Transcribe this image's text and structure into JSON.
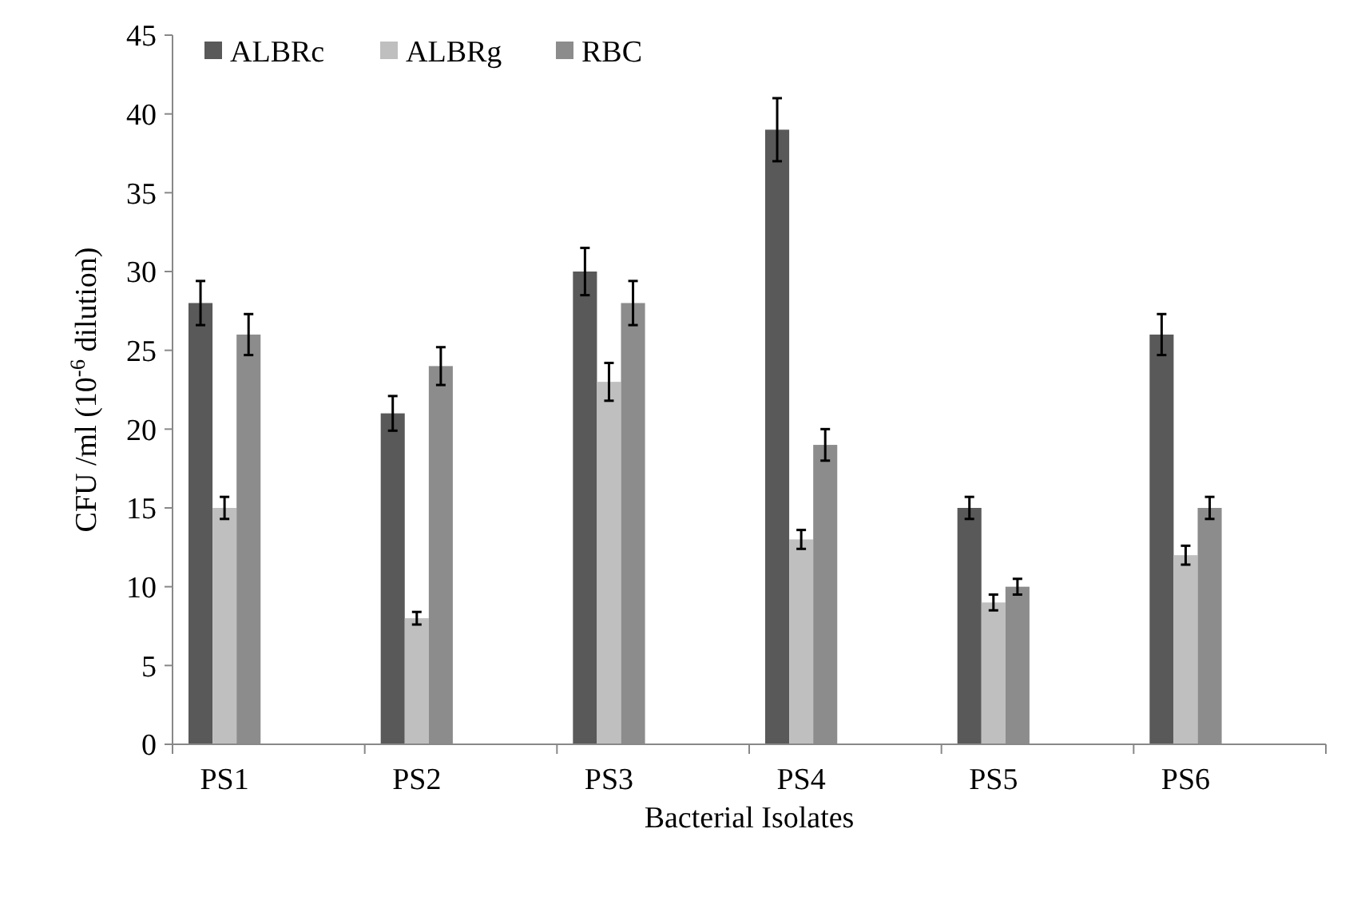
{
  "chart_data": {
    "type": "bar",
    "xlabel": "Bacterial Isolates",
    "ylabel": "CFU /ml (10$^{-6}$ dilution)",
    "categories": [
      "PS1",
      "PS2",
      "PS3",
      "PS4",
      "PS5",
      "PS6"
    ],
    "ylim": [
      0,
      45
    ],
    "yticks": [
      0,
      5,
      10,
      15,
      20,
      25,
      30,
      35,
      40,
      45
    ],
    "grid": false,
    "legend": "top left",
    "series": [
      {
        "name": "ALBRc",
        "color": "#595959",
        "values": [
          28,
          21,
          30,
          39,
          15,
          26
        ],
        "errors": [
          1.4,
          1.1,
          1.5,
          2,
          0.7,
          1.3
        ]
      },
      {
        "name": "ALBRg",
        "color": "#bfbfbf",
        "values": [
          15,
          8,
          23,
          13,
          9,
          12
        ],
        "errors": [
          0.7,
          0.4,
          1.2,
          0.6,
          0.5,
          0.6
        ]
      },
      {
        "name": "RBC",
        "color": "#8c8c8c",
        "values": [
          26,
          24,
          28,
          19,
          10,
          15
        ],
        "errors": [
          1.3,
          1.2,
          1.4,
          1,
          0.5,
          0.7
        ]
      }
    ]
  }
}
